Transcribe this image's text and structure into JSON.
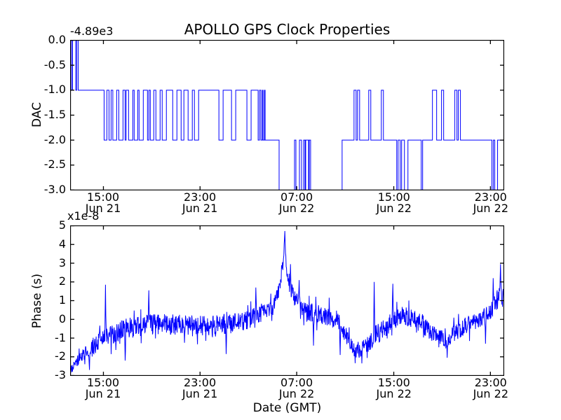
{
  "figure": {
    "title": "APOLLO GPS Clock Properties",
    "background": "#ffffff",
    "axis_color": "#000000"
  },
  "chart_data": [
    {
      "id": "dac",
      "type": "line",
      "line_style": "step-post",
      "line_color": "#0000ff",
      "title": "APOLLO GPS Clock Properties",
      "ylabel": "DAC",
      "offset_text": "-4.89e3",
      "ylim": [
        -3.0,
        0.0
      ],
      "grid": false,
      "legend": null,
      "ytick_values": [
        0.0,
        -0.5,
        -1.0,
        -1.5,
        -2.0,
        -2.5,
        -3.0
      ],
      "ytick_labels": [
        "0.0",
        "-0.5",
        "-1.0",
        "-1.5",
        "-2.0",
        "-2.5",
        "-3.0"
      ],
      "xticks": [
        {
          "pos": 0.076,
          "time": "15:00",
          "date": "Jun 21"
        },
        {
          "pos": 0.299,
          "time": "23:00",
          "date": "Jun 21"
        },
        {
          "pos": 0.522,
          "time": "07:00",
          "date": "Jun 22"
        },
        {
          "pos": 0.746,
          "time": "15:00",
          "date": "Jun 22"
        },
        {
          "pos": 0.969,
          "time": "23:00",
          "date": "Jun 22"
        }
      ],
      "steps": [
        [
          0.0,
          0
        ],
        [
          0.0024,
          -1
        ],
        [
          0.0048,
          0
        ],
        [
          0.0121,
          -1
        ],
        [
          0.0145,
          0
        ],
        [
          0.0178,
          -1
        ],
        [
          0.0776,
          -2
        ],
        [
          0.084,
          -1
        ],
        [
          0.0889,
          -2
        ],
        [
          0.0937,
          -1
        ],
        [
          0.0977,
          -2
        ],
        [
          0.1066,
          -1
        ],
        [
          0.1115,
          -2
        ],
        [
          0.1212,
          -1
        ],
        [
          0.126,
          -2
        ],
        [
          0.1284,
          -1
        ],
        [
          0.1341,
          -2
        ],
        [
          0.1438,
          -1
        ],
        [
          0.147,
          -2
        ],
        [
          0.1551,
          -1
        ],
        [
          0.1583,
          -2
        ],
        [
          0.168,
          -1
        ],
        [
          0.1777,
          -2
        ],
        [
          0.1809,
          -1
        ],
        [
          0.1842,
          -2
        ],
        [
          0.1922,
          -1
        ],
        [
          0.1971,
          -2
        ],
        [
          0.2068,
          -1
        ],
        [
          0.2116,
          -2
        ],
        [
          0.2213,
          -1
        ],
        [
          0.2359,
          -2
        ],
        [
          0.2456,
          -1
        ],
        [
          0.2553,
          -2
        ],
        [
          0.2617,
          -1
        ],
        [
          0.2714,
          -2
        ],
        [
          0.2811,
          -1
        ],
        [
          0.286,
          -2
        ],
        [
          0.2957,
          -1
        ],
        [
          0.3425,
          -2
        ],
        [
          0.3522,
          -1
        ],
        [
          0.3716,
          -2
        ],
        [
          0.3813,
          -1
        ],
        [
          0.4071,
          -2
        ],
        [
          0.4168,
          -1
        ],
        [
          0.433,
          -2
        ],
        [
          0.4362,
          -1
        ],
        [
          0.4394,
          -2
        ],
        [
          0.4427,
          -1
        ],
        [
          0.4443,
          -2
        ],
        [
          0.4475,
          -1
        ],
        [
          0.4491,
          -2
        ],
        [
          0.4814,
          -3
        ],
        [
          0.517,
          -2
        ],
        [
          0.5202,
          -3
        ],
        [
          0.5283,
          -2
        ],
        [
          0.5331,
          -3
        ],
        [
          0.538,
          -2
        ],
        [
          0.5412,
          -3
        ],
        [
          0.5428,
          -2
        ],
        [
          0.5493,
          -3
        ],
        [
          0.5509,
          -2
        ],
        [
          0.5541,
          -3
        ],
        [
          0.6268,
          -2
        ],
        [
          0.6543,
          -1
        ],
        [
          0.6591,
          -2
        ],
        [
          0.6624,
          -1
        ],
        [
          0.6672,
          -2
        ],
        [
          0.6882,
          -1
        ],
        [
          0.693,
          -2
        ],
        [
          0.7173,
          -1
        ],
        [
          0.7221,
          -2
        ],
        [
          0.7528,
          -3
        ],
        [
          0.756,
          -2
        ],
        [
          0.7609,
          -3
        ],
        [
          0.7641,
          -2
        ],
        [
          0.7706,
          -3
        ],
        [
          0.7787,
          -2
        ],
        [
          0.8094,
          -3
        ],
        [
          0.8126,
          -2
        ],
        [
          0.8352,
          -1
        ],
        [
          0.8449,
          -2
        ],
        [
          0.8562,
          -1
        ],
        [
          0.8611,
          -2
        ],
        [
          0.8869,
          -1
        ],
        [
          0.8918,
          -2
        ],
        [
          0.895,
          -1
        ],
        [
          0.8998,
          -2
        ],
        [
          0.9725,
          -3
        ],
        [
          0.9758,
          -2
        ],
        [
          0.979,
          -3
        ],
        [
          0.9855,
          -2
        ]
      ]
    },
    {
      "id": "phase",
      "type": "line",
      "line_style": "noisy",
      "line_color": "#0000ff",
      "ylabel": "Phase (s)",
      "xlabel": "Date (GMT)",
      "offset_text": "x1e-8",
      "ylim": [
        -3,
        5
      ],
      "grid": false,
      "legend": null,
      "samples": 1300,
      "ytick_values": [
        5,
        4,
        3,
        2,
        1,
        0,
        -1,
        -2,
        -3
      ],
      "ytick_labels": [
        "5",
        "4",
        "3",
        "2",
        "1",
        "0",
        "-1",
        "-2",
        "-3"
      ],
      "xticks": [
        {
          "pos": 0.076,
          "time": "15:00",
          "date": "Jun 21"
        },
        {
          "pos": 0.299,
          "time": "23:00",
          "date": "Jun 21"
        },
        {
          "pos": 0.522,
          "time": "07:00",
          "date": "Jun 22"
        },
        {
          "pos": 0.746,
          "time": "15:00",
          "date": "Jun 22"
        },
        {
          "pos": 0.969,
          "time": "23:00",
          "date": "Jun 22"
        }
      ],
      "trend": {
        "x": [
          0.0,
          0.006,
          0.02,
          0.04,
          0.065,
          0.09,
          0.12,
          0.17,
          0.23,
          0.29,
          0.34,
          0.4,
          0.43,
          0.46,
          0.478,
          0.489,
          0.4935,
          0.5,
          0.508,
          0.52,
          0.53,
          0.55,
          0.575,
          0.605,
          0.63,
          0.655,
          0.668,
          0.69,
          0.705,
          0.73,
          0.76,
          0.79,
          0.82,
          0.848,
          0.868,
          0.89,
          0.915,
          0.94,
          0.962,
          0.978,
          0.99,
          1.0
        ],
        "mean": [
          -2.8,
          -2.55,
          -2.15,
          -1.65,
          -1.2,
          -0.85,
          -0.55,
          -0.3,
          -0.25,
          -0.35,
          -0.3,
          -0.1,
          0.25,
          0.6,
          1.2,
          2.8,
          4.2,
          2.3,
          1.6,
          1.0,
          0.7,
          0.4,
          0.25,
          0.15,
          -0.55,
          -1.55,
          -1.7,
          -1.2,
          -0.8,
          -0.35,
          0.2,
          0.05,
          -0.35,
          -1.0,
          -1.15,
          -0.65,
          -0.3,
          -0.05,
          0.25,
          0.7,
          1.4,
          1.0
        ],
        "amp": [
          0.2,
          0.25,
          0.35,
          0.45,
          0.5,
          0.55,
          0.55,
          0.55,
          0.55,
          0.55,
          0.55,
          0.55,
          0.5,
          0.45,
          0.45,
          0.5,
          0.4,
          0.5,
          0.5,
          0.45,
          0.45,
          0.5,
          0.5,
          0.55,
          0.5,
          0.45,
          0.45,
          0.5,
          0.55,
          0.55,
          0.5,
          0.55,
          0.55,
          0.5,
          0.45,
          0.5,
          0.5,
          0.45,
          0.45,
          0.55,
          0.65,
          0.55
        ]
      },
      "spikes": [
        {
          "x": 0.044,
          "v": -2.7
        },
        {
          "x": 0.081,
          "v": 1.85
        },
        {
          "x": 0.126,
          "v": -2.2
        },
        {
          "x": 0.181,
          "v": 1.55
        },
        {
          "x": 0.359,
          "v": -1.85
        },
        {
          "x": 0.428,
          "v": 1.7
        },
        {
          "x": 0.4943,
          "v": 4.72
        },
        {
          "x": 0.508,
          "v": 2.95
        },
        {
          "x": 0.528,
          "v": 2.1
        },
        {
          "x": 0.561,
          "v": -1.4
        },
        {
          "x": 0.622,
          "v": -1.9
        },
        {
          "x": 0.672,
          "v": -2.35
        },
        {
          "x": 0.701,
          "v": 2.0
        },
        {
          "x": 0.744,
          "v": 1.9
        },
        {
          "x": 0.869,
          "v": -2.05
        },
        {
          "x": 0.958,
          "v": -1.3
        },
        {
          "x": 0.975,
          "v": 2.2
        },
        {
          "x": 0.992,
          "v": 2.95
        }
      ]
    }
  ]
}
